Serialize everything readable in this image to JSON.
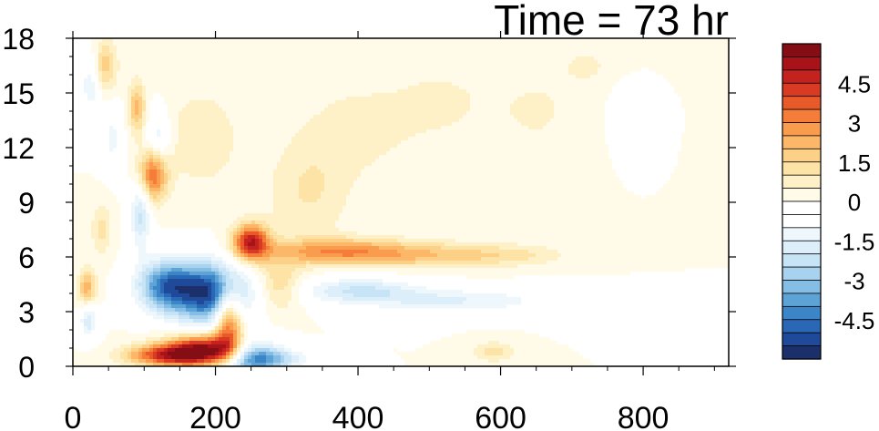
{
  "chart_data": {
    "type": "heatmap",
    "title": "Time = 73 hr",
    "xlabel": "",
    "ylabel": "",
    "xlim": [
      0,
      920
    ],
    "ylim": [
      0,
      18
    ],
    "x_ticks": [
      0,
      200,
      400,
      600,
      800
    ],
    "x_tick_labels": [
      "0",
      "200",
      "400",
      "600",
      "800"
    ],
    "y_ticks": [
      0,
      3,
      6,
      9,
      12,
      15,
      18
    ],
    "y_tick_labels": [
      "0",
      "3",
      "6",
      "9",
      "12",
      "15",
      "18"
    ],
    "colorbar": {
      "min": -6,
      "max": 6,
      "step": 0.5,
      "labels": [
        "4.5",
        "3",
        "1.5",
        "0",
        "-1.5",
        "-3",
        "-4.5"
      ],
      "label_values": [
        4.5,
        3,
        1.5,
        0,
        -1.5,
        -3,
        -4.5
      ],
      "colors": [
        "#1b2f6b",
        "#1f4a99",
        "#2a68b5",
        "#3c86c7",
        "#5ea3d6",
        "#86bde4",
        "#a9d2ef",
        "#c7e3f6",
        "#dbeef9",
        "#edf7fc",
        "#ffffff",
        "#ffffff",
        "#fffbe8",
        "#fef0c7",
        "#fde3a5",
        "#fdd087",
        "#fcb868",
        "#f99c4d",
        "#f47d39",
        "#e95a2b",
        "#d93a24",
        "#c4221f",
        "#a8131a",
        "#850d14"
      ]
    },
    "features": [
      {
        "x": 190,
        "y": 0.9,
        "sx": 40,
        "sy": 0.6,
        "v": 5.8
      },
      {
        "x": 130,
        "y": 0.6,
        "sx": 40,
        "sy": 0.4,
        "v": 3.8
      },
      {
        "x": 218,
        "y": 2.6,
        "sx": 14,
        "sy": 1.4,
        "v": 4.2
      },
      {
        "x": 195,
        "y": 4.0,
        "sx": 35,
        "sy": 1.2,
        "v": -5.5
      },
      {
        "x": 130,
        "y": 4.4,
        "sx": 28,
        "sy": 1.0,
        "v": -4.2
      },
      {
        "x": 245,
        "y": 0.5,
        "sx": 30,
        "sy": 0.7,
        "v": -4.6
      },
      {
        "x": 290,
        "y": 0.4,
        "sx": 30,
        "sy": 0.4,
        "v": -1.8
      },
      {
        "x": 250,
        "y": 6.8,
        "sx": 18,
        "sy": 0.7,
        "v": 4.8
      },
      {
        "x": 290,
        "y": 4.5,
        "sx": 22,
        "sy": 1.0,
        "v": 1.6
      },
      {
        "x": 370,
        "y": 6.3,
        "sx": 70,
        "sy": 0.5,
        "v": 2.6
      },
      {
        "x": 500,
        "y": 6.1,
        "sx": 80,
        "sy": 0.5,
        "v": 1.6
      },
      {
        "x": 620,
        "y": 6.1,
        "sx": 55,
        "sy": 0.4,
        "v": 0.8
      },
      {
        "x": 400,
        "y": 4.2,
        "sx": 60,
        "sy": 0.5,
        "v": -1.9
      },
      {
        "x": 540,
        "y": 3.6,
        "sx": 100,
        "sy": 0.5,
        "v": -1.5
      },
      {
        "x": 112,
        "y": 10.5,
        "sx": 14,
        "sy": 1.0,
        "v": 3.6
      },
      {
        "x": 90,
        "y": 14.2,
        "sx": 8,
        "sy": 1.0,
        "v": 2.2
      },
      {
        "x": 95,
        "y": 8.4,
        "sx": 10,
        "sy": 1.4,
        "v": -2.2
      },
      {
        "x": 120,
        "y": 12.5,
        "sx": 12,
        "sy": 1.1,
        "v": -1.6
      },
      {
        "x": 20,
        "y": 4.3,
        "sx": 9,
        "sy": 0.7,
        "v": 2.3
      },
      {
        "x": 22,
        "y": 2.5,
        "sx": 9,
        "sy": 0.7,
        "v": -1.8
      },
      {
        "x": 45,
        "y": 16.5,
        "sx": 12,
        "sy": 1.0,
        "v": 1.8
      },
      {
        "x": 25,
        "y": 15.5,
        "sx": 10,
        "sy": 1.2,
        "v": -1.5
      },
      {
        "x": 55,
        "y": 12.5,
        "sx": 10,
        "sy": 1.2,
        "v": -1.2
      },
      {
        "x": 40,
        "y": 7.5,
        "sx": 10,
        "sy": 1.0,
        "v": 1.2
      },
      {
        "x": 180,
        "y": 12.5,
        "sx": 40,
        "sy": 2.0,
        "v": 0.9
      },
      {
        "x": 330,
        "y": 9.5,
        "sx": 40,
        "sy": 2.0,
        "v": 1.0
      },
      {
        "x": 400,
        "y": 13.0,
        "sx": 60,
        "sy": 2.0,
        "v": 0.7
      },
      {
        "x": 520,
        "y": 14.5,
        "sx": 50,
        "sy": 1.5,
        "v": 0.6
      },
      {
        "x": 650,
        "y": 14.0,
        "sx": 40,
        "sy": 1.5,
        "v": 0.6
      },
      {
        "x": 720,
        "y": 16.5,
        "sx": 30,
        "sy": 0.8,
        "v": 0.6
      },
      {
        "x": 590,
        "y": 0.8,
        "sx": 20,
        "sy": 0.4,
        "v": 1.2
      },
      {
        "x": 780,
        "y": 14.0,
        "sx": 15,
        "sy": 1.0,
        "v": -0.6
      }
    ]
  }
}
